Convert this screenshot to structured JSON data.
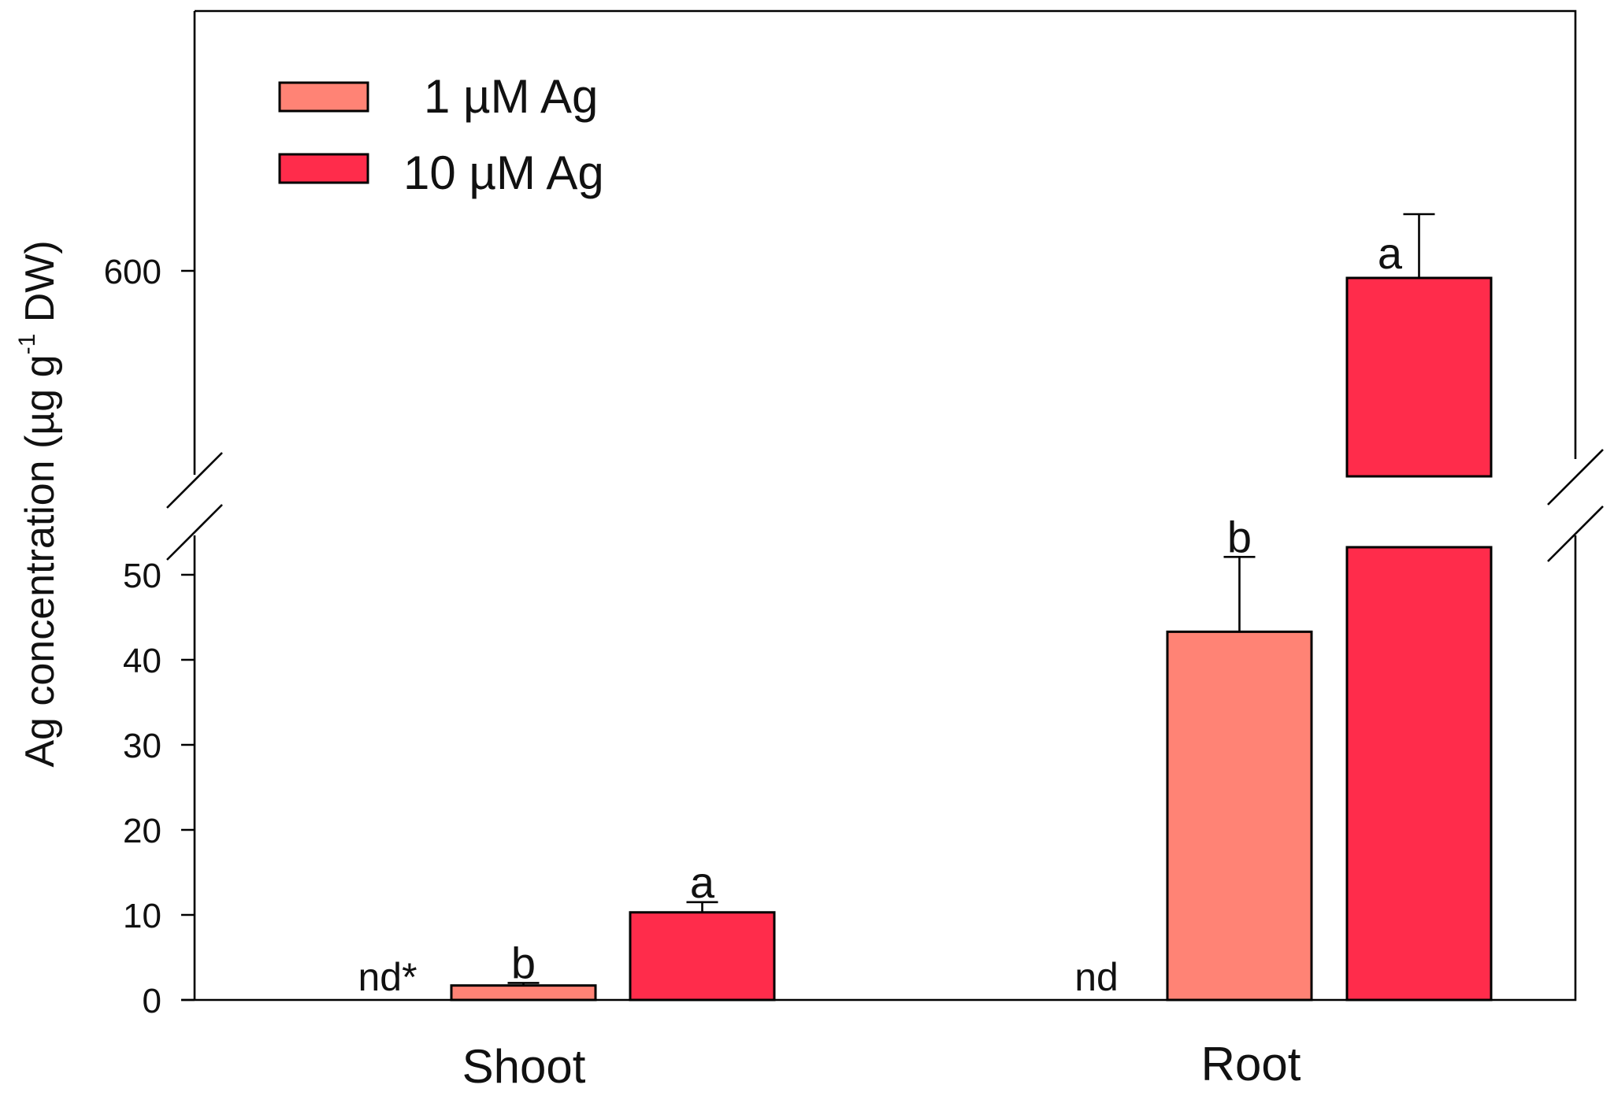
{
  "chart_data": {
    "type": "bar",
    "title": "",
    "xlabel": "",
    "ylabel": "Ag concentration (µg g⁻¹ DW)",
    "ylabel_parts": {
      "main": "Ag concentration (µg g",
      "sup": "-1",
      "tail": " DW)"
    },
    "categories": [
      "Shoot",
      "Root"
    ],
    "axis_break": {
      "lower_range": [
        0,
        50
      ],
      "upper_tick": 600
    },
    "lower_ticks": [
      "0",
      "10",
      "20",
      "30",
      "40",
      "50"
    ],
    "upper_ticks": [
      "600"
    ],
    "legend": {
      "placement": "top-left"
    },
    "series": [
      {
        "name": "1 µM Ag",
        "color": "#FF8375",
        "values": [
          1.7,
          43.3
        ],
        "errors": [
          0.3,
          8.8
        ],
        "labels": [
          "b",
          "b"
        ]
      },
      {
        "name": "10 µM Ag",
        "color": "#FF2C4B",
        "values": [
          10.3,
          590
        ],
        "errors": [
          1.2,
          90
        ],
        "labels": [
          "a",
          "a"
        ]
      }
    ],
    "control_labels": [
      "nd*",
      "nd"
    ]
  }
}
